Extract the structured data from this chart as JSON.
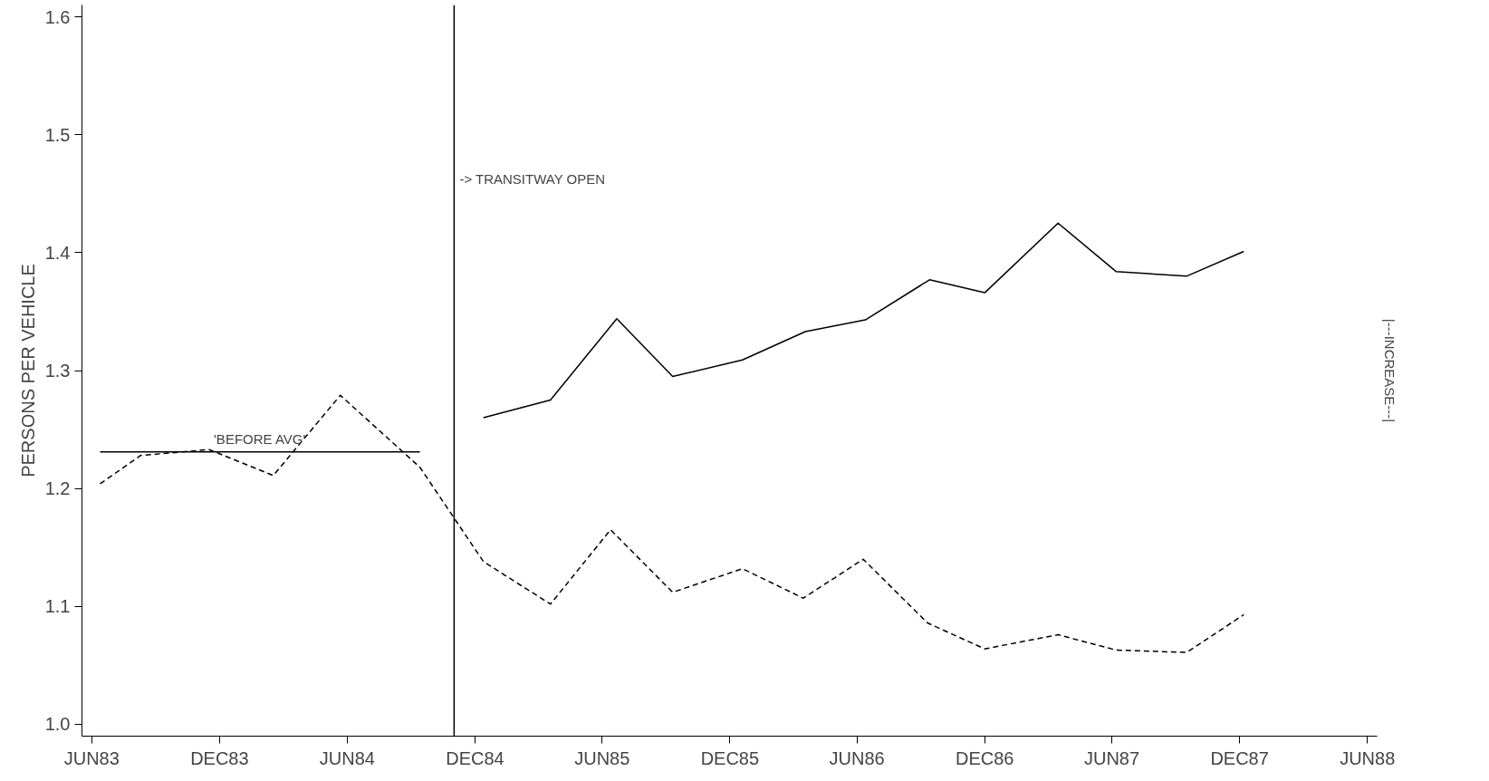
{
  "chart_data": {
    "type": "line",
    "ylabel": "PERSONS PER VEHICLE",
    "xlim": [
      "1983-05-18",
      "1988-06-15"
    ],
    "xticks": [
      {
        "value": "1983-06-01",
        "label": "JUN83"
      },
      {
        "value": "1983-12-01",
        "label": "DEC83"
      },
      {
        "value": "1984-06-01",
        "label": "JUN84"
      },
      {
        "value": "1984-12-01",
        "label": "DEC84"
      },
      {
        "value": "1985-06-01",
        "label": "JUN85"
      },
      {
        "value": "1985-12-01",
        "label": "DEC85"
      },
      {
        "value": "1986-06-01",
        "label": "JUN86"
      },
      {
        "value": "1986-12-01",
        "label": "DEC86"
      },
      {
        "value": "1987-06-01",
        "label": "JUN87"
      },
      {
        "value": "1987-12-01",
        "label": "DEC87"
      },
      {
        "value": "1988-06-01",
        "label": "JUN88"
      }
    ],
    "ylim": [
      0.99,
      1.61
    ],
    "yticks": [
      {
        "value": 1,
        "label": "1.0"
      },
      {
        "value": 1.1,
        "label": "1.1"
      },
      {
        "value": 1.2,
        "label": "1.2"
      },
      {
        "value": 1.3,
        "label": "1.3"
      },
      {
        "value": 1.4,
        "label": "1.4"
      },
      {
        "value": 1.5,
        "label": "1.5"
      },
      {
        "value": 1.6,
        "label": "1.6"
      }
    ],
    "grid": false,
    "series": [
      {
        "color": "#000000",
        "line_style": "dashed",
        "x": [
          "1983-06-13",
          "1983-08-10",
          "1983-11-16",
          "1984-02-16",
          "1984-05-22",
          "1984-09-13",
          "1984-12-13",
          "1985-03-19",
          "1985-06-13",
          "1985-09-10",
          "1985-12-19",
          "1986-03-16",
          "1986-06-10",
          "1986-09-10",
          "1986-12-01",
          "1987-03-16",
          "1987-06-07",
          "1987-09-16",
          "1987-12-07"
        ],
        "values": [
          1.204,
          1.228,
          1.233,
          1.211,
          1.279,
          1.218,
          1.138,
          1.102,
          1.165,
          1.112,
          1.132,
          1.107,
          1.14,
          1.086,
          1.064,
          1.076,
          1.063,
          1.061,
          1.093
        ]
      },
      {
        "color": "#000000",
        "line_style": "solid",
        "x": [
          "1984-12-13",
          "1985-03-19",
          "1985-06-22",
          "1985-09-10",
          "1985-12-19",
          "1986-03-19",
          "1986-06-13",
          "1986-09-13",
          "1986-12-01",
          "1987-03-16",
          "1987-06-07",
          "1987-09-16",
          "1987-12-07"
        ],
        "values": [
          1.26,
          1.275,
          1.344,
          1.295,
          1.309,
          1.333,
          1.343,
          1.377,
          1.366,
          1.425,
          1.384,
          1.38,
          1.401
        ]
      },
      {
        "name": "'BEFORE AVG'",
        "color": "#000000",
        "line_style": "solid",
        "x": [
          "1983-06-13",
          "1984-09-13"
        ],
        "values": [
          1.231,
          1.231
        ]
      }
    ],
    "ref_lines": [
      {
        "axis": "x",
        "value": "1984-11-01",
        "label": "-> TRANSITWAY OPEN"
      }
    ],
    "annotations": [
      "|---INCREASE---|"
    ]
  }
}
